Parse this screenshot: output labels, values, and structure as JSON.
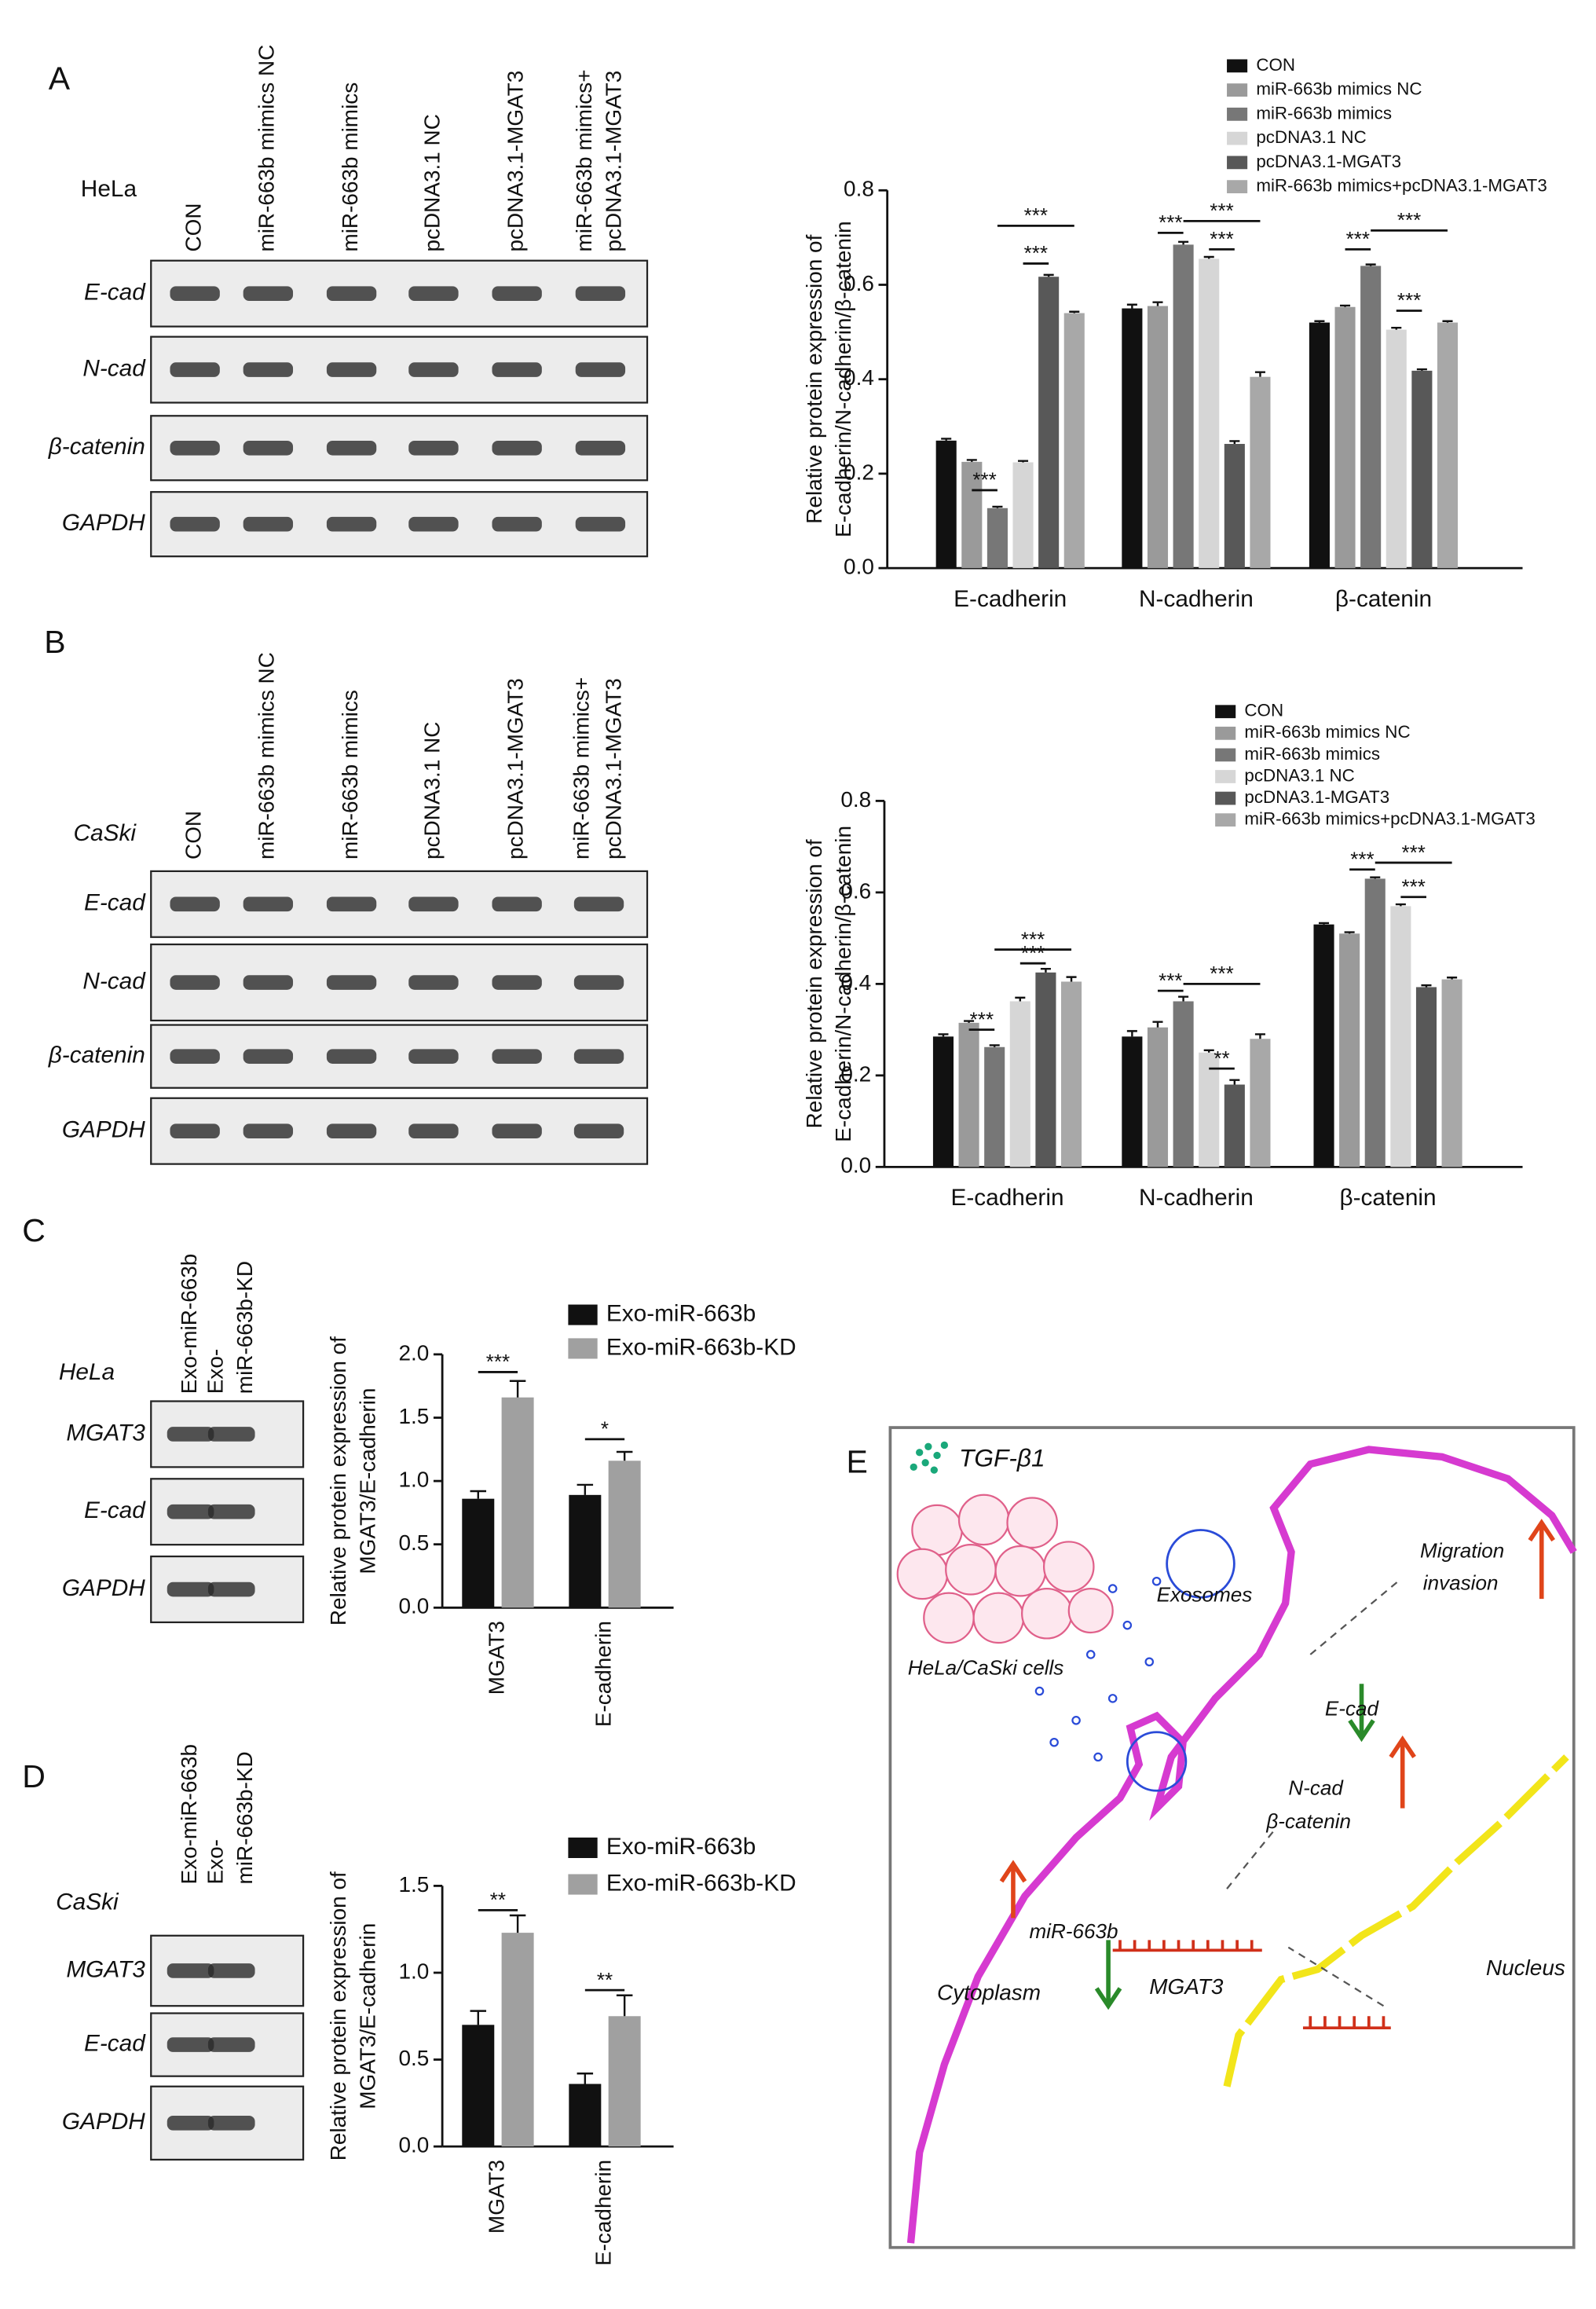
{
  "chart_data": [
    {
      "type": "bar",
      "ylabel": [
        "Relative protein expression of",
        "E-cadherin/N-cadherin/β-catenin"
      ],
      "categories": [
        "E-cadherin",
        "N-cadherin",
        "β-catenin"
      ],
      "ylim": [
        0,
        0.8
      ],
      "yticks": [
        {
          "value": 0,
          "label": "0.0"
        },
        0.2,
        0.4,
        0.6,
        0.8
      ],
      "series": [
        {
          "name": "CON",
          "color": "#111111",
          "values": [
            0.27,
            0.55,
            0.52
          ],
          "errors": [
            0.004,
            0.008,
            0.003
          ]
        },
        {
          "name": "miR-663b mimics NC",
          "color": "#9a9a9a",
          "values": [
            0.225,
            0.555,
            0.553
          ],
          "errors": [
            0.004,
            0.008,
            0.003
          ]
        },
        {
          "name": "miR-663b mimics",
          "color": "#777777",
          "values": [
            0.127,
            0.685,
            0.64
          ],
          "errors": [
            0.003,
            0.006,
            0.003
          ]
        },
        {
          "name": "pcDNA3.1 NC",
          "color": "#d6d6d6",
          "values": [
            0.224,
            0.655,
            0.505
          ],
          "errors": [
            0.003,
            0.004,
            0.004
          ]
        },
        {
          "name": "pcDNA3.1-MGAT3",
          "color": "#585858",
          "values": [
            0.617,
            0.263,
            0.418
          ],
          "errors": [
            0.004,
            0.006,
            0.003
          ]
        },
        {
          "name": "miR-663b mimics+pcDNA3.1-MGAT3",
          "color": "#a8a8a8",
          "values": [
            0.54,
            0.405,
            0.52
          ],
          "errors": [
            0.003,
            0.01,
            0.003
          ]
        }
      ],
      "annotations": [
        "***",
        "***",
        "***",
        "***",
        "***",
        "***",
        "***",
        "***",
        "***"
      ]
    },
    {
      "type": "bar",
      "ylabel": [
        "Relative protein expression of",
        "E-cadherin/N-cadherin/β-catenin"
      ],
      "categories": [
        "E-cadherin",
        "N-cadherin",
        "β-catenin"
      ],
      "ylim": [
        0,
        0.8
      ],
      "yticks": [
        {
          "value": 0,
          "label": "0.0"
        },
        0.2,
        0.4,
        0.6,
        0.8
      ],
      "series": [
        {
          "name": "CON",
          "color": "#111111",
          "values": [
            0.285,
            0.285,
            0.53
          ],
          "errors": [
            0.005,
            0.012,
            0.003
          ]
        },
        {
          "name": "miR-663b mimics NC",
          "color": "#9a9a9a",
          "values": [
            0.315,
            0.305,
            0.51
          ],
          "errors": [
            0.004,
            0.012,
            0.003
          ]
        },
        {
          "name": "miR-663b mimics",
          "color": "#777777",
          "values": [
            0.262,
            0.362,
            0.63
          ],
          "errors": [
            0.004,
            0.01,
            0.003
          ]
        },
        {
          "name": "pcDNA3.1 NC",
          "color": "#d6d6d6",
          "values": [
            0.362,
            0.25,
            0.57
          ],
          "errors": [
            0.008,
            0.005,
            0.004
          ]
        },
        {
          "name": "pcDNA3.1-MGAT3",
          "color": "#585858",
          "values": [
            0.425,
            0.18,
            0.393
          ],
          "errors": [
            0.008,
            0.01,
            0.004
          ]
        },
        {
          "name": "miR-663b mimics+pcDNA3.1-MGAT3",
          "color": "#a8a8a8",
          "values": [
            0.405,
            0.28,
            0.41
          ],
          "errors": [
            0.01,
            0.01,
            0.004
          ]
        }
      ],
      "annotations": [
        "***",
        "***",
        "***",
        "***",
        "**",
        "***",
        "***",
        "***",
        "***"
      ]
    },
    {
      "type": "bar",
      "ylabel": [
        "Relative protein expression of",
        "MGAT3/E-cadherin"
      ],
      "categories": [
        "MGAT3",
        "E-cadherin"
      ],
      "ylim": [
        0,
        2.0
      ],
      "yticks": [
        {
          "value": 0,
          "label": "0.0"
        },
        0.5,
        {
          "value": 1,
          "label": "1.0"
        },
        1.5,
        {
          "value": 2,
          "label": "2.0"
        }
      ],
      "series": [
        {
          "name": "Exo-miR-663b",
          "color": "#111111",
          "values": [
            0.86,
            0.89
          ],
          "errors": [
            0.06,
            0.08
          ]
        },
        {
          "name": "Exo-miR-663b-KD",
          "color": "#a0a0a0",
          "values": [
            1.66,
            1.16
          ],
          "errors": [
            0.13,
            0.07
          ]
        }
      ],
      "annotations": [
        "***",
        "*"
      ]
    },
    {
      "type": "bar",
      "ylabel": [
        "Relative protein expression of",
        "MGAT3/E-cadherin"
      ],
      "categories": [
        "MGAT3",
        "E-cadherin"
      ],
      "ylim": [
        0,
        1.5
      ],
      "yticks": [
        {
          "value": 0,
          "label": "0.0"
        },
        0.5,
        {
          "value": 1,
          "label": "1.0"
        },
        1.5
      ],
      "series": [
        {
          "name": "Exo-miR-663b",
          "color": "#111111",
          "values": [
            0.7,
            0.36
          ],
          "errors": [
            0.08,
            0.06
          ]
        },
        {
          "name": "Exo-miR-663b-KD",
          "color": "#a0a0a0",
          "values": [
            1.23,
            0.75
          ],
          "errors": [
            0.1,
            0.12
          ]
        }
      ],
      "annotations": [
        "**",
        "**"
      ]
    }
  ],
  "blots": [
    {
      "letter": "A",
      "cell": "HeLa",
      "lanes": [
        "CON",
        "miR-663b mimics NC",
        "miR-663b mimics",
        "pcDNA3.1 NC",
        "pcDNA3.1-MGAT3",
        [
          "miR-663b mimics+",
          "pcDNA3.1-MGAT3"
        ]
      ],
      "rows": [
        "E-cad",
        "N-cad",
        "β-catenin",
        "GAPDH"
      ]
    },
    {
      "letter": "B",
      "cell": "CaSki",
      "lanes": [
        "CON",
        "miR-663b mimics NC",
        "miR-663b mimics",
        "pcDNA3.1 NC",
        "pcDNA3.1-MGAT3",
        [
          "miR-663b mimics+",
          "pcDNA3.1-MGAT3"
        ]
      ],
      "rows": [
        "E-cad",
        "N-cad",
        "β-catenin",
        "GAPDH"
      ]
    },
    {
      "letter": "C",
      "cell": "HeLa",
      "lanes": [
        "Exo-miR-663b",
        [
          "Exo-",
          "miR-663b-KD"
        ]
      ],
      "rows": [
        "MGAT3",
        "E-cad",
        "GAPDH"
      ]
    },
    {
      "letter": "D",
      "cell": "CaSki",
      "lanes": [
        "Exo-miR-663b",
        [
          "Exo-",
          "miR-663b-KD"
        ]
      ],
      "rows": [
        "MGAT3",
        "E-cad",
        "GAPDH"
      ]
    }
  ],
  "diagram": {
    "letter": "E",
    "labels": [
      "TGF-β1",
      "HeLa/CaSki cells",
      "Exosomes",
      "Migration",
      "invasion",
      "E-cad",
      "N-cad",
      "β-catenin",
      "miR-663b",
      "Cytoplasm",
      "MGAT3",
      "Nucleus"
    ]
  }
}
